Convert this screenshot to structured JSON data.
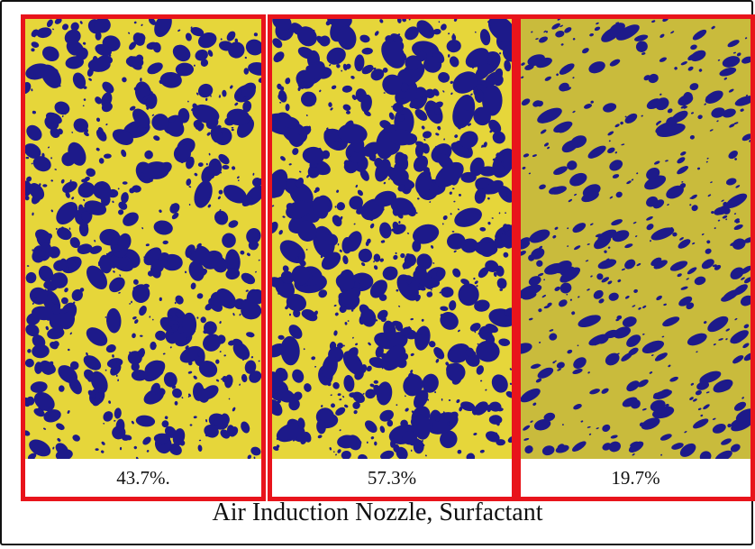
{
  "panels": [
    {
      "label": "43.7%.",
      "coverage": 0.437
    },
    {
      "label": "57.3%",
      "coverage": 0.573
    },
    {
      "label": "19.7%",
      "coverage": 0.197
    }
  ],
  "caption": "Air Induction Nozzle, Surfactant",
  "colors": {
    "paper_yellow": "#e6d63a",
    "paper_yellow_dim": "#c9bb3c",
    "droplet_blue": "#1d1a8a",
    "highlight_red": "#e8141b"
  }
}
